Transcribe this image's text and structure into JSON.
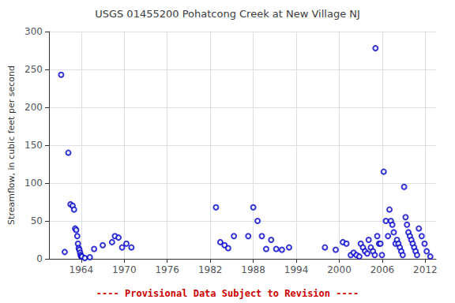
{
  "chart_data": {
    "type": "scatter",
    "title": "USGS 01455200 Pohatcong Creek at New Village NJ",
    "ylabel": "Streamflow, in cubic feet per second",
    "annotations": [
      {
        "text": "---- Provisional Data Subject to Revision ----",
        "color": "#cc0000"
      }
    ],
    "xlim": [
      1959.5,
      2013.5
    ],
    "ylim": [
      0,
      300
    ],
    "xticks": [
      1964,
      1970,
      1976,
      1982,
      1988,
      1994,
      2000,
      2006,
      2012
    ],
    "yticks": [
      0,
      50,
      100,
      150,
      200,
      250,
      300
    ],
    "grid": true,
    "color": "#0000cc",
    "marker": "open-circle",
    "x": [
      1961.2,
      1961.7,
      1962.2,
      1962.5,
      1962.8,
      1963.0,
      1963.15,
      1963.3,
      1963.45,
      1963.55,
      1963.65,
      1963.75,
      1963.85,
      1963.92,
      1963.98,
      1964.1,
      1964.5,
      1965.2,
      1965.8,
      1967.0,
      1968.3,
      1968.7,
      1969.2,
      1969.7,
      1970.3,
      1971.0,
      1982.8,
      1983.4,
      1984.0,
      1984.5,
      1985.3,
      1987.3,
      1988.0,
      1988.6,
      1989.2,
      1989.8,
      1990.5,
      1991.2,
      1992.0,
      1993.0,
      1998.0,
      1999.5,
      2000.5,
      2001.0,
      2001.6,
      2002.0,
      2002.4,
      2002.8,
      2003.0,
      2003.3,
      2003.6,
      2003.9,
      2004.1,
      2004.4,
      2004.7,
      2004.95,
      2005.05,
      2005.3,
      2005.55,
      2005.75,
      2005.95,
      2006.2,
      2006.5,
      2006.8,
      2007.0,
      2007.2,
      2007.4,
      2007.6,
      2007.85,
      2008.05,
      2008.25,
      2008.45,
      2008.65,
      2008.85,
      2009.05,
      2009.25,
      2009.45,
      2009.65,
      2009.85,
      2010.05,
      2010.25,
      2010.45,
      2010.65,
      2010.85,
      2011.1,
      2011.5,
      2011.9,
      2012.2,
      2012.7
    ],
    "values": [
      243,
      9,
      140,
      72,
      70,
      65,
      40,
      38,
      30,
      20,
      14,
      12,
      8,
      5,
      3,
      3,
      1,
      2,
      13,
      18,
      22,
      30,
      28,
      15,
      20,
      15,
      68,
      22,
      18,
      14,
      30,
      30,
      68,
      50,
      30,
      13,
      25,
      13,
      12,
      15,
      15,
      12,
      22,
      20,
      5,
      8,
      5,
      3,
      20,
      15,
      10,
      7,
      25,
      15,
      10,
      5,
      278,
      30,
      20,
      20,
      5,
      115,
      50,
      30,
      65,
      50,
      45,
      35,
      20,
      25,
      20,
      15,
      10,
      5,
      95,
      55,
      45,
      35,
      30,
      25,
      20,
      15,
      10,
      5,
      40,
      30,
      20,
      10,
      3
    ]
  }
}
